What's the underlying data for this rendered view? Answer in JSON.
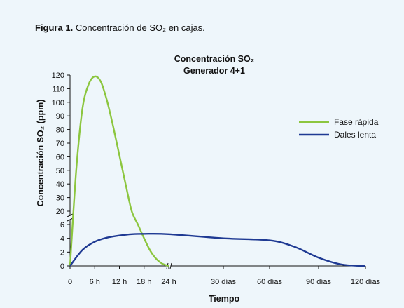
{
  "figure": {
    "label": "Figura 1.",
    "text": "Concentración de SO₂ en cajas."
  },
  "chart_data": {
    "type": "line",
    "title": "Concentración SO₂",
    "subtitle": "Generador 4+1",
    "xlabel": "Tiempo",
    "ylabel": "Concentración SO₂ (ppm)",
    "y_ticks_lower": [
      "0",
      "2",
      "4",
      "6"
    ],
    "y_ticks_upper": [
      "20",
      "30",
      "40",
      "50",
      "60",
      "70",
      "80",
      "90",
      "100",
      "110",
      "120"
    ],
    "x_ticks": [
      "0",
      "6 h",
      "12 h",
      "18 h",
      "24 h",
      "30 días",
      "60 días",
      "90 días",
      "120 días"
    ],
    "axis_breaks": {
      "y_between": [
        6,
        20
      ],
      "x_between": [
        "24 h",
        "30 días"
      ]
    },
    "legend_position": "right",
    "grid": false,
    "series": [
      {
        "name": "Fase rápida",
        "color": "#8cc63f",
        "points": [
          [
            "0",
            0
          ],
          [
            "1.5 h",
            50
          ],
          [
            "3 h",
            95
          ],
          [
            "4.5 h",
            113
          ],
          [
            "6 h",
            119
          ],
          [
            "7.5 h",
            115
          ],
          [
            "9 h",
            101
          ],
          [
            "10.5 h",
            82
          ],
          [
            "12 h",
            61
          ],
          [
            "13.5 h",
            40
          ],
          [
            "15 h",
            20
          ],
          [
            "16.5 h",
            6
          ],
          [
            "18 h",
            4
          ],
          [
            "19.5 h",
            2.2
          ],
          [
            "21 h",
            1.0
          ],
          [
            "22.5 h",
            0.3
          ],
          [
            "24 h",
            0
          ]
        ]
      },
      {
        "name": "Dales lenta",
        "color": "#1f3a93",
        "points": [
          [
            "0",
            0
          ],
          [
            "3 h",
            2.3
          ],
          [
            "6 h",
            3.5
          ],
          [
            "9 h",
            4.1
          ],
          [
            "12 h",
            4.4
          ],
          [
            "15 h",
            4.6
          ],
          [
            "18 h",
            4.65
          ],
          [
            "24 h",
            4.6
          ],
          [
            "30 días",
            4.0
          ],
          [
            "60 días",
            3.7
          ],
          [
            "75 días",
            2.8
          ],
          [
            "90 días",
            1.2
          ],
          [
            "105 días",
            0.2
          ],
          [
            "120 días",
            0
          ]
        ]
      }
    ]
  }
}
